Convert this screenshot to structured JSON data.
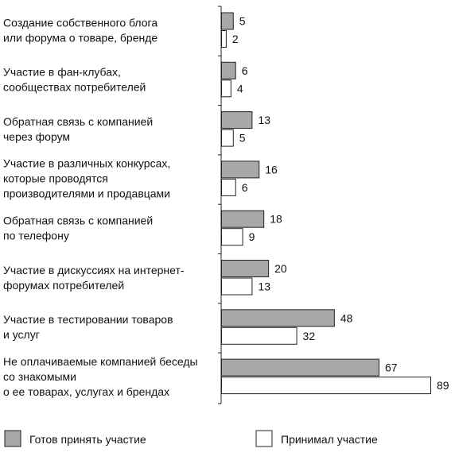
{
  "chart_data": {
    "type": "bar",
    "orientation": "horizontal",
    "categories": [
      [
        "Создание собственного блога",
        "или форума о товаре, бренде"
      ],
      [
        "Участие в фан-клубах,",
        "сообществах потребителей"
      ],
      [
        "Обратная связь с компанией",
        "через форум"
      ],
      [
        "Участие в различных конкурсах,",
        "которые проводятся",
        "производителями и продавцами"
      ],
      [
        "Обратная связь с компанией",
        "по телефону"
      ],
      [
        "Участие в дискуссиях на интернет-",
        "форумах потребителей"
      ],
      [
        "Участие в тестировании товаров",
        "и услуг"
      ],
      [
        "Не оплачиваемые компанией беседы",
        "со знакомыми",
        "о ее товарах, услугах и брендах"
      ]
    ],
    "series": [
      {
        "name": "Готов принять участие",
        "values": [
          5,
          6,
          13,
          16,
          18,
          20,
          48,
          67
        ],
        "color": "#a8a8a8"
      },
      {
        "name": "Принимал участие",
        "values": [
          2,
          4,
          5,
          6,
          9,
          13,
          32,
          89
        ],
        "color": "#ffffff"
      }
    ],
    "data_labels": true,
    "legend_position": "bottom",
    "grid": false,
    "xlim": [
      0,
      89
    ],
    "bar_border_color": "#222222",
    "axis_color": "#222222"
  }
}
